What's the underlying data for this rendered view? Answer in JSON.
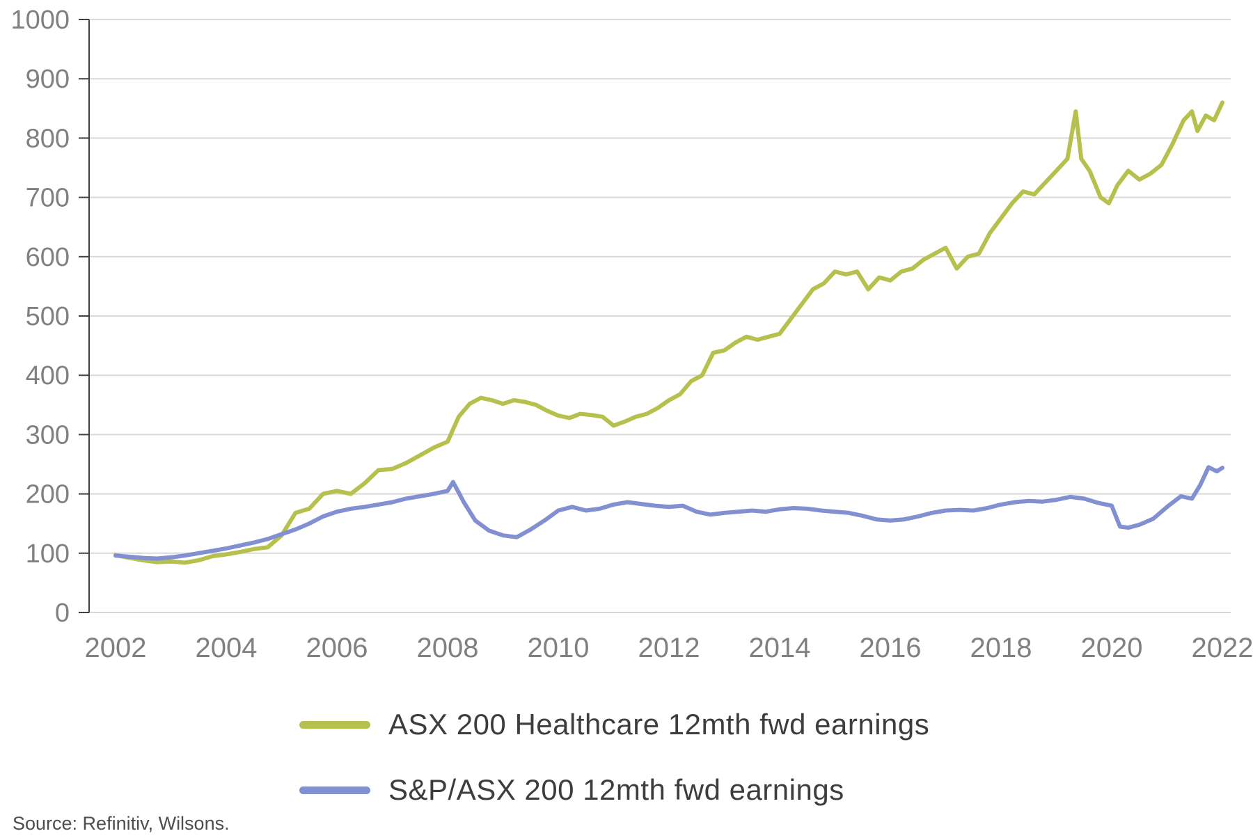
{
  "source": "Source: Refinitiv, Wilsons.",
  "colors": {
    "grid": "#d9d9d9",
    "axis_text": "#808080",
    "axis_line": "#404040",
    "legend_text": "#3d3d3d"
  },
  "chart_data": {
    "type": "line",
    "title": "",
    "xlabel": "",
    "ylabel": "",
    "grid": "horizontal",
    "legend_position": "bottom",
    "xlim": [
      2002,
      2022
    ],
    "ylim": [
      0,
      1000
    ],
    "x_ticks": [
      2002,
      2004,
      2006,
      2008,
      2010,
      2012,
      2014,
      2016,
      2018,
      2020,
      2022
    ],
    "y_ticks": [
      0,
      100,
      200,
      300,
      400,
      500,
      600,
      700,
      800,
      900,
      1000
    ],
    "series": [
      {
        "name": "ASX 200 Healthcare 12mth fwd earnings",
        "color": "#b6c04d",
        "x": [
          2002.0,
          2002.25,
          2002.5,
          2002.75,
          2003.0,
          2003.25,
          2003.5,
          2003.75,
          2004.0,
          2004.25,
          2004.5,
          2004.75,
          2005.0,
          2005.25,
          2005.5,
          2005.75,
          2006.0,
          2006.25,
          2006.5,
          2006.75,
          2007.0,
          2007.25,
          2007.5,
          2007.75,
          2008.0,
          2008.2,
          2008.4,
          2008.6,
          2008.8,
          2009.0,
          2009.2,
          2009.4,
          2009.6,
          2009.8,
          2010.0,
          2010.2,
          2010.4,
          2010.6,
          2010.8,
          2011.0,
          2011.2,
          2011.4,
          2011.6,
          2011.8,
          2012.0,
          2012.2,
          2012.4,
          2012.6,
          2012.8,
          2013.0,
          2013.2,
          2013.4,
          2013.6,
          2013.8,
          2014.0,
          2014.2,
          2014.4,
          2014.6,
          2014.8,
          2015.0,
          2015.2,
          2015.4,
          2015.6,
          2015.8,
          2016.0,
          2016.2,
          2016.4,
          2016.6,
          2016.8,
          2017.0,
          2017.2,
          2017.4,
          2017.6,
          2017.8,
          2018.0,
          2018.2,
          2018.4,
          2018.6,
          2018.8,
          2019.0,
          2019.2,
          2019.35,
          2019.45,
          2019.6,
          2019.8,
          2019.95,
          2020.1,
          2020.3,
          2020.5,
          2020.7,
          2020.9,
          2021.1,
          2021.3,
          2021.45,
          2021.55,
          2021.7,
          2021.85,
          2022.0
        ],
        "y": [
          97,
          92,
          88,
          85,
          86,
          84,
          88,
          95,
          98,
          102,
          107,
          110,
          130,
          168,
          175,
          200,
          205,
          200,
          218,
          240,
          242,
          252,
          265,
          278,
          288,
          330,
          352,
          362,
          358,
          352,
          358,
          355,
          350,
          340,
          332,
          328,
          335,
          333,
          330,
          315,
          322,
          330,
          335,
          345,
          358,
          368,
          390,
          400,
          438,
          442,
          455,
          465,
          460,
          465,
          470,
          495,
          520,
          545,
          555,
          575,
          570,
          575,
          545,
          565,
          560,
          575,
          580,
          595,
          605,
          615,
          580,
          600,
          605,
          640,
          665,
          690,
          710,
          705,
          725,
          745,
          765,
          845,
          765,
          745,
          700,
          690,
          720,
          745,
          730,
          740,
          755,
          790,
          830,
          845,
          812,
          838,
          830,
          860
        ]
      },
      {
        "name": "S&P/ASX 200 12mth fwd earnings",
        "color": "#8290d2",
        "x": [
          2002.0,
          2002.25,
          2002.5,
          2002.75,
          2003.0,
          2003.25,
          2003.5,
          2003.75,
          2004.0,
          2004.25,
          2004.5,
          2004.75,
          2005.0,
          2005.25,
          2005.5,
          2005.75,
          2006.0,
          2006.25,
          2006.5,
          2006.75,
          2007.0,
          2007.25,
          2007.5,
          2007.75,
          2008.0,
          2008.1,
          2008.3,
          2008.5,
          2008.75,
          2009.0,
          2009.25,
          2009.5,
          2009.75,
          2010.0,
          2010.25,
          2010.5,
          2010.75,
          2011.0,
          2011.25,
          2011.5,
          2011.75,
          2012.0,
          2012.25,
          2012.5,
          2012.75,
          2013.0,
          2013.25,
          2013.5,
          2013.75,
          2014.0,
          2014.25,
          2014.5,
          2014.75,
          2015.0,
          2015.25,
          2015.5,
          2015.75,
          2016.0,
          2016.25,
          2016.5,
          2016.75,
          2017.0,
          2017.25,
          2017.5,
          2017.75,
          2018.0,
          2018.25,
          2018.5,
          2018.75,
          2019.0,
          2019.25,
          2019.5,
          2019.75,
          2020.0,
          2020.15,
          2020.3,
          2020.5,
          2020.75,
          2021.0,
          2021.25,
          2021.45,
          2021.6,
          2021.75,
          2021.9,
          2022.0
        ],
        "y": [
          96,
          94,
          92,
          91,
          93,
          96,
          100,
          104,
          108,
          113,
          118,
          124,
          132,
          140,
          150,
          162,
          170,
          175,
          178,
          182,
          186,
          192,
          196,
          200,
          205,
          220,
          185,
          155,
          138,
          130,
          127,
          140,
          155,
          172,
          178,
          172,
          175,
          182,
          186,
          183,
          180,
          178,
          180,
          170,
          165,
          168,
          170,
          172,
          170,
          174,
          176,
          175,
          172,
          170,
          168,
          163,
          157,
          155,
          157,
          162,
          168,
          172,
          173,
          172,
          176,
          182,
          186,
          188,
          187,
          190,
          195,
          192,
          185,
          180,
          145,
          143,
          148,
          158,
          178,
          196,
          192,
          215,
          245,
          238,
          244
        ]
      }
    ]
  }
}
